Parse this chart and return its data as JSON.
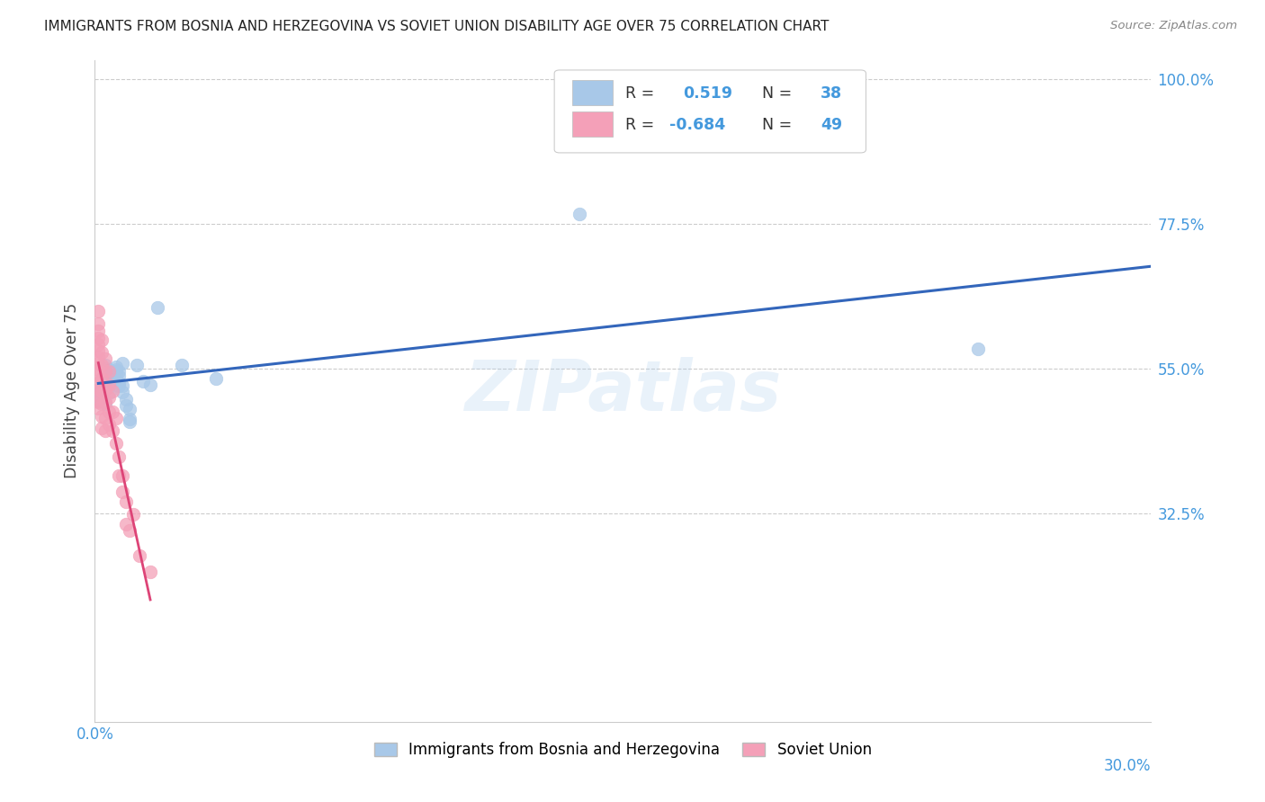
{
  "title": "IMMIGRANTS FROM BOSNIA AND HERZEGOVINA VS SOVIET UNION DISABILITY AGE OVER 75 CORRELATION CHART",
  "source": "Source: ZipAtlas.com",
  "ylabel": "Disability Age Over 75",
  "watermark": "ZIPatlas",
  "legend_label_blue": "Immigrants from Bosnia and Herzegovina",
  "legend_label_pink": "Soviet Union",
  "blue_color": "#A8C8E8",
  "pink_color": "#F4A0B8",
  "blue_line_color": "#3366BB",
  "pink_line_color": "#DD4477",
  "title_color": "#222222",
  "axis_label_color": "#4499DD",
  "blue_scatter": [
    [
      0.001,
      0.5
    ],
    [
      0.001,
      0.51
    ],
    [
      0.002,
      0.52
    ],
    [
      0.002,
      0.505
    ],
    [
      0.002,
      0.515
    ],
    [
      0.003,
      0.545
    ],
    [
      0.003,
      0.555
    ],
    [
      0.003,
      0.55
    ],
    [
      0.003,
      0.495
    ],
    [
      0.004,
      0.548
    ],
    [
      0.004,
      0.538
    ],
    [
      0.004,
      0.522
    ],
    [
      0.004,
      0.512
    ],
    [
      0.005,
      0.545
    ],
    [
      0.005,
      0.535
    ],
    [
      0.005,
      0.528
    ],
    [
      0.006,
      0.552
    ],
    [
      0.006,
      0.548
    ],
    [
      0.006,
      0.543
    ],
    [
      0.006,
      0.533
    ],
    [
      0.007,
      0.545
    ],
    [
      0.007,
      0.538
    ],
    [
      0.007,
      0.528
    ],
    [
      0.007,
      0.523
    ],
    [
      0.008,
      0.558
    ],
    [
      0.008,
      0.523
    ],
    [
      0.008,
      0.513
    ],
    [
      0.009,
      0.502
    ],
    [
      0.009,
      0.492
    ],
    [
      0.01,
      0.487
    ],
    [
      0.01,
      0.472
    ],
    [
      0.01,
      0.467
    ],
    [
      0.012,
      0.555
    ],
    [
      0.014,
      0.53
    ],
    [
      0.016,
      0.525
    ],
    [
      0.018,
      0.645
    ],
    [
      0.025,
      0.555
    ],
    [
      0.035,
      0.535
    ],
    [
      0.14,
      0.79
    ],
    [
      0.255,
      0.58
    ]
  ],
  "pink_scatter": [
    [
      0.001,
      0.64
    ],
    [
      0.001,
      0.62
    ],
    [
      0.001,
      0.608
    ],
    [
      0.001,
      0.598
    ],
    [
      0.001,
      0.588
    ],
    [
      0.001,
      0.578
    ],
    [
      0.001,
      0.568
    ],
    [
      0.001,
      0.558
    ],
    [
      0.001,
      0.548
    ],
    [
      0.001,
      0.538
    ],
    [
      0.001,
      0.528
    ],
    [
      0.001,
      0.518
    ],
    [
      0.001,
      0.508
    ],
    [
      0.001,
      0.498
    ],
    [
      0.001,
      0.488
    ],
    [
      0.002,
      0.595
    ],
    [
      0.002,
      0.575
    ],
    [
      0.002,
      0.555
    ],
    [
      0.002,
      0.535
    ],
    [
      0.002,
      0.515
    ],
    [
      0.002,
      0.495
    ],
    [
      0.002,
      0.475
    ],
    [
      0.002,
      0.458
    ],
    [
      0.003,
      0.565
    ],
    [
      0.003,
      0.545
    ],
    [
      0.003,
      0.518
    ],
    [
      0.003,
      0.498
    ],
    [
      0.003,
      0.473
    ],
    [
      0.003,
      0.453
    ],
    [
      0.004,
      0.545
    ],
    [
      0.004,
      0.525
    ],
    [
      0.004,
      0.505
    ],
    [
      0.004,
      0.483
    ],
    [
      0.004,
      0.463
    ],
    [
      0.005,
      0.515
    ],
    [
      0.005,
      0.483
    ],
    [
      0.005,
      0.453
    ],
    [
      0.006,
      0.473
    ],
    [
      0.006,
      0.433
    ],
    [
      0.007,
      0.413
    ],
    [
      0.007,
      0.383
    ],
    [
      0.008,
      0.383
    ],
    [
      0.008,
      0.358
    ],
    [
      0.009,
      0.343
    ],
    [
      0.009,
      0.308
    ],
    [
      0.01,
      0.298
    ],
    [
      0.011,
      0.323
    ],
    [
      0.013,
      0.258
    ],
    [
      0.016,
      0.233
    ]
  ],
  "xlim": [
    0.0,
    0.305
  ],
  "ylim": [
    0.0,
    1.03
  ],
  "yticks": [
    1.0,
    0.775,
    0.55,
    0.325
  ],
  "ytick_labels": [
    "100.0%",
    "77.5%",
    "55.0%",
    "32.5%"
  ],
  "xtick_left_label": "0.0%",
  "xtick_right_label": "30.0%",
  "figsize": [
    14.06,
    8.92
  ],
  "dpi": 100
}
